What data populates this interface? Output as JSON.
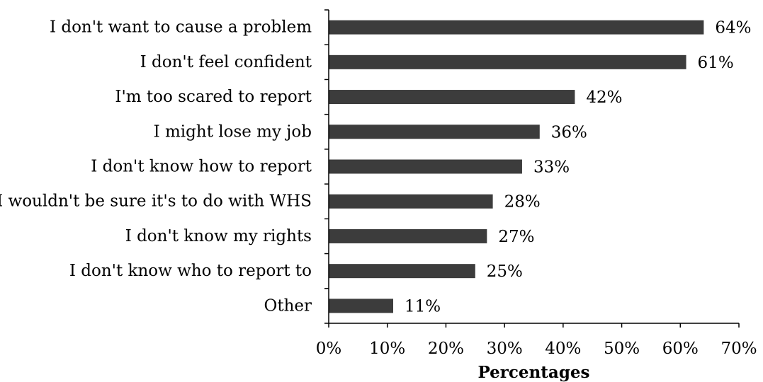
{
  "chart_data": {
    "type": "bar",
    "orientation": "horizontal",
    "categories": [
      "I don't want to cause a problem",
      "I don't feel confident",
      "I'm too scared to report",
      "I might lose my job",
      "I don't know how to report",
      "I wouldn't be sure it's to do with WHS",
      "I don't know my rights",
      "I don't know who to report to",
      "Other"
    ],
    "values": [
      64,
      61,
      42,
      36,
      33,
      28,
      27,
      25,
      11
    ],
    "value_labels": [
      "64%",
      "61%",
      "42%",
      "36%",
      "33%",
      "28%",
      "27%",
      "25%",
      "11%"
    ],
    "xlim": [
      0,
      70
    ],
    "x_ticks": [
      0,
      10,
      20,
      30,
      40,
      50,
      60,
      70
    ],
    "x_tick_labels": [
      "0%",
      "10%",
      "20%",
      "30%",
      "40%",
      "50%",
      "60%",
      "70%"
    ],
    "title": "",
    "xlabel": "Percentages",
    "ylabel": "",
    "grid": false,
    "legend": "none",
    "bar_color": "#3c3c3c"
  }
}
